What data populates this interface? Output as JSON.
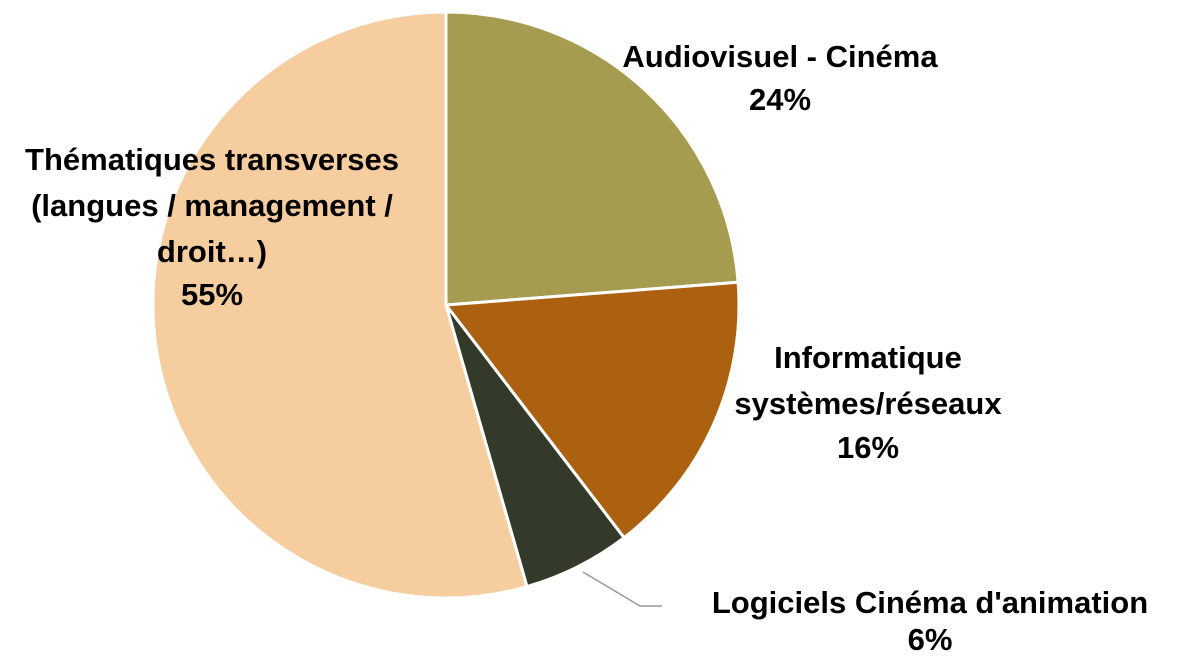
{
  "chart_data": {
    "type": "pie",
    "categories": [
      "Audiovisuel - Cinéma",
      "Informatique systèmes/réseaux",
      "Logiciels Cinéma d'animation",
      "Thématiques transverses (langues / management / droit…)"
    ],
    "values": [
      24,
      16,
      6,
      55
    ],
    "value_labels": [
      "24%",
      "16%",
      "6%",
      "55%"
    ],
    "colors": [
      "#a59c4f",
      "#ab610f",
      "#333a2a",
      "#f5cd9e"
    ]
  }
}
